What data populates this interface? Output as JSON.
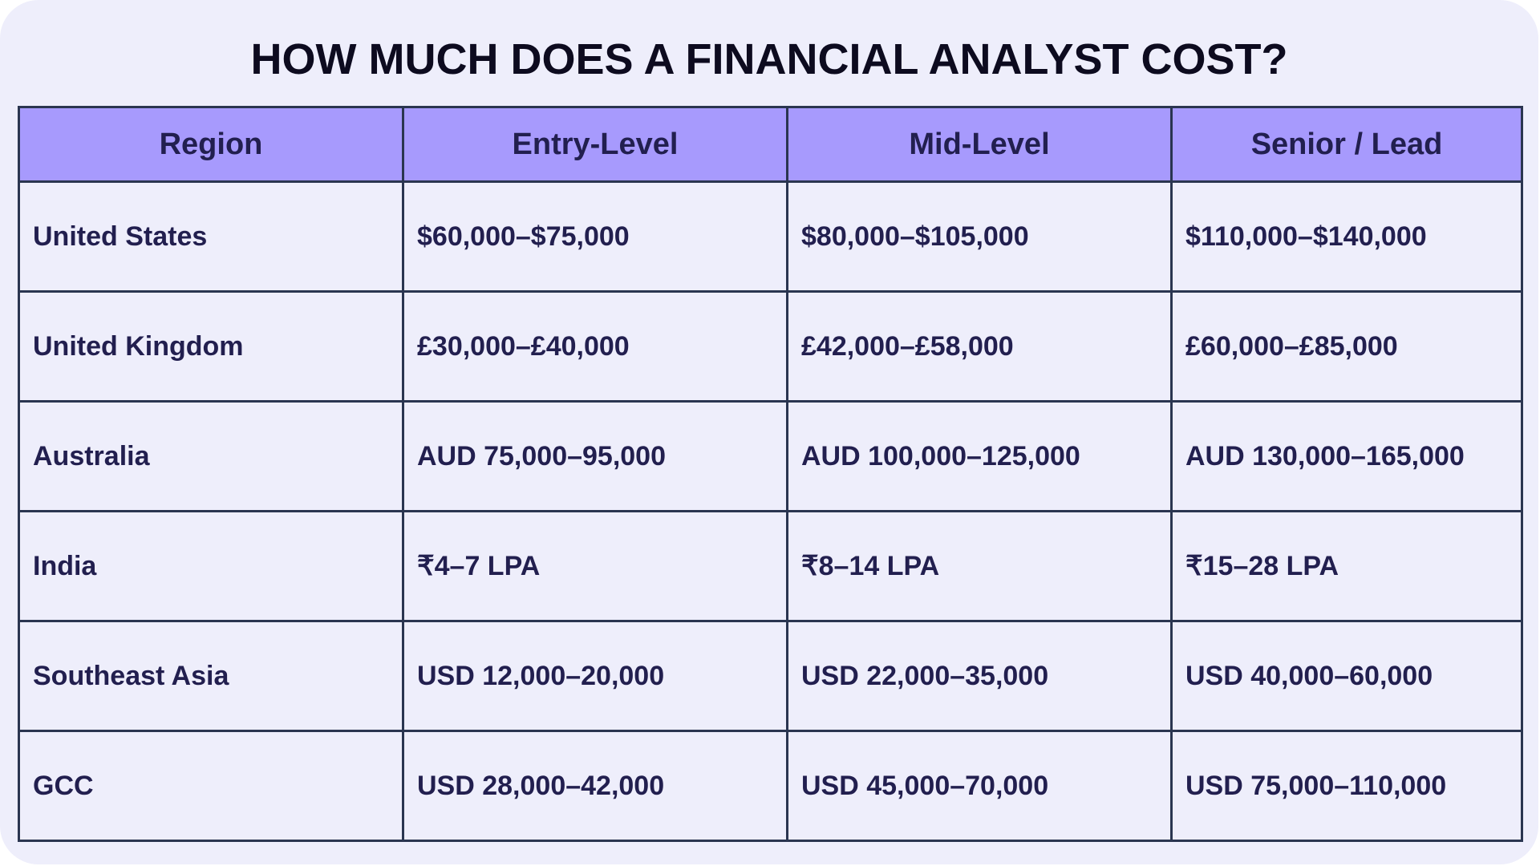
{
  "title": "HOW MUCH DOES A FINANCIAL ANALYST COST?",
  "colors": {
    "background": "#eeeefb",
    "header_fill": "#a79afd",
    "border": "#2a3550",
    "text": "#221f4f",
    "title_text": "#0d0b1f"
  },
  "table": {
    "headers": [
      "Region",
      "Entry-Level",
      "Mid-Level",
      "Senior / Lead"
    ],
    "rows": [
      [
        "United States",
        "$60,000–$75,000",
        "$80,000–$105,000",
        "$110,000–$140,000"
      ],
      [
        "United Kingdom",
        "£30,000–£40,000",
        "£42,000–£58,000",
        "£60,000–£85,000"
      ],
      [
        "Australia",
        "AUD 75,000–95,000",
        "AUD 100,000–125,000",
        "AUD 130,000–165,000"
      ],
      [
        "India",
        "₹4–7 LPA",
        "₹8–14 LPA",
        "₹15–28 LPA"
      ],
      [
        "Southeast Asia",
        "USD 12,000–20,000",
        "USD 22,000–35,000",
        "USD 40,000–60,000"
      ],
      [
        "GCC",
        "USD 28,000–42,000",
        "USD 45,000–70,000",
        "USD 75,000–110,000"
      ]
    ]
  }
}
